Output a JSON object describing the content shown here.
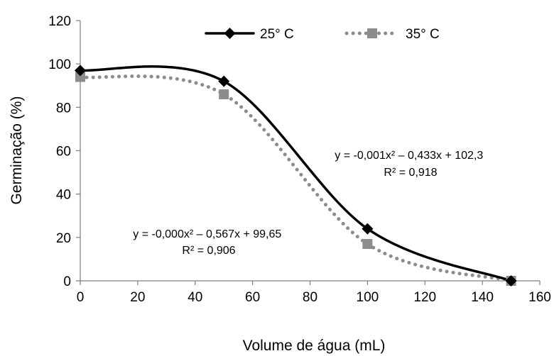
{
  "chart_data": {
    "type": "line",
    "xlabel": "Volume de água (mL)",
    "ylabel": "Germinação (%)",
    "xlim": [
      0,
      160
    ],
    "ylim": [
      0,
      120
    ],
    "xticks": [
      0,
      20,
      40,
      60,
      80,
      100,
      120,
      140,
      160
    ],
    "yticks": [
      0,
      20,
      40,
      60,
      80,
      100,
      120
    ],
    "grid": false,
    "legend_position": "top",
    "series": [
      {
        "name": "25° C",
        "color": "#000000",
        "line_style": "solid",
        "marker": "diamond",
        "x": [
          0,
          50,
          100,
          150
        ],
        "y": [
          97,
          92,
          24,
          0
        ]
      },
      {
        "name": "35° C",
        "color": "#8c8c8c",
        "line_style": "dotted",
        "marker": "square",
        "x": [
          0,
          50,
          100,
          150
        ],
        "y": [
          94,
          86,
          17,
          0
        ]
      }
    ],
    "annotations": [
      {
        "id": "eq25",
        "line1": "y = -0,001x² – 0,433x + 102,3",
        "line2": "R² = 0,918"
      },
      {
        "id": "eq35",
        "line1": "y = -0,000x² – 0,567x + 99,65",
        "line2": "R² = 0,906"
      }
    ]
  }
}
